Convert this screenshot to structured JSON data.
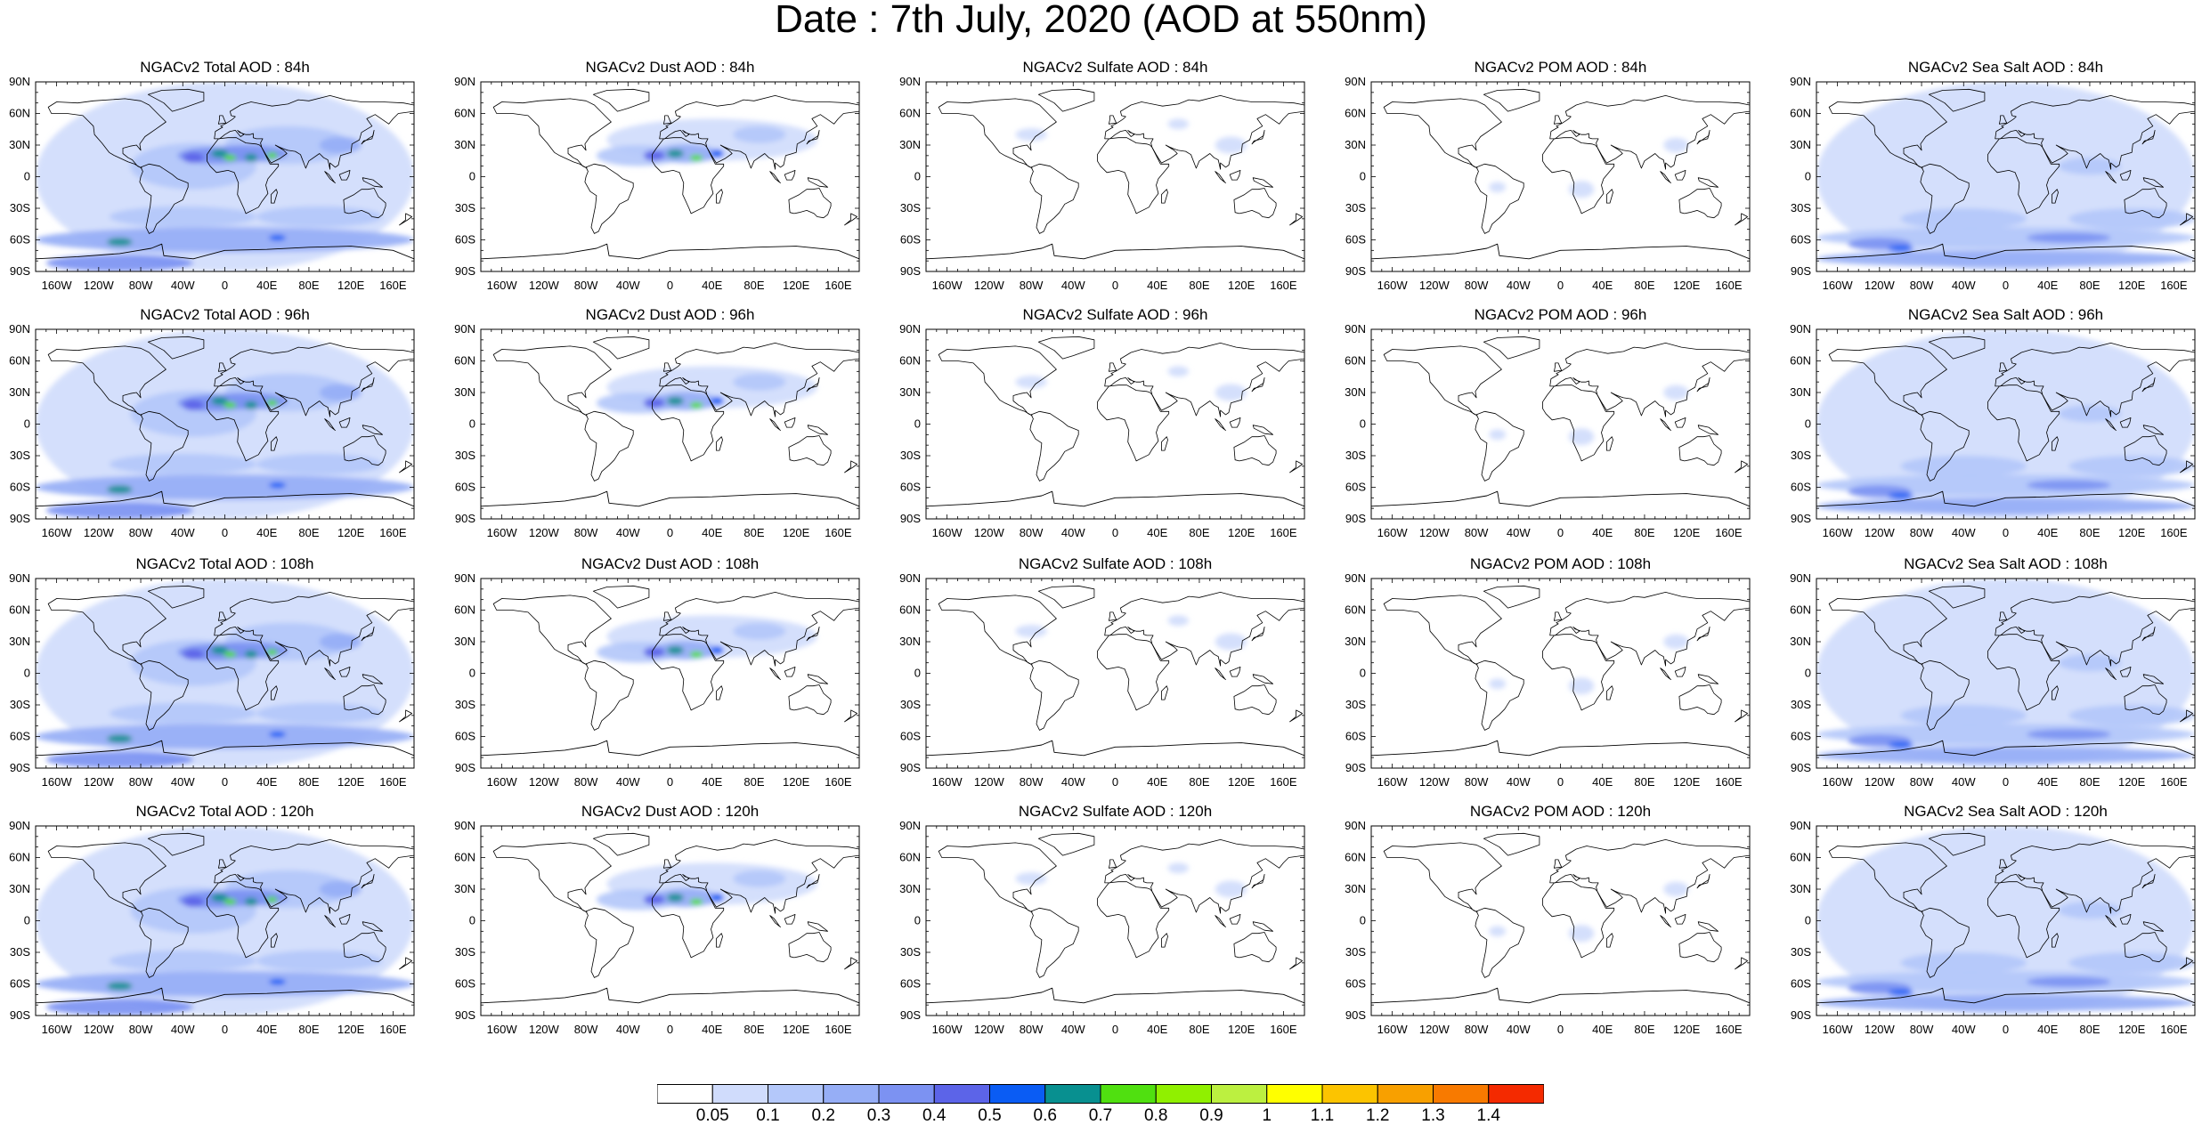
{
  "title": "Date : 7th July, 2020 (AOD at 550nm)",
  "axes": {
    "lon_ticks": [
      "160W",
      "120W",
      "80W",
      "40W",
      "0",
      "40E",
      "80E",
      "120E",
      "160E"
    ],
    "lat_ticks": [
      "90N",
      "60N",
      "30N",
      "0",
      "30S",
      "60S",
      "90S"
    ]
  },
  "panels": [
    {
      "title": "NGACv2 Total AOD : 84h",
      "species": "total"
    },
    {
      "title": "NGACv2 Dust AOD : 84h",
      "species": "dust"
    },
    {
      "title": "NGACv2 Sulfate AOD : 84h",
      "species": "sulfate"
    },
    {
      "title": "NGACv2 POM AOD : 84h",
      "species": "pom"
    },
    {
      "title": "NGACv2 Sea Salt AOD : 84h",
      "species": "seasalt"
    },
    {
      "title": "NGACv2 Total AOD : 96h",
      "species": "total"
    },
    {
      "title": "NGACv2 Dust AOD : 96h",
      "species": "dust"
    },
    {
      "title": "NGACv2 Sulfate AOD : 96h",
      "species": "sulfate"
    },
    {
      "title": "NGACv2 POM AOD : 96h",
      "species": "pom"
    },
    {
      "title": "NGACv2 Sea Salt AOD : 96h",
      "species": "seasalt"
    },
    {
      "title": "NGACv2 Total AOD : 108h",
      "species": "total"
    },
    {
      "title": "NGACv2 Dust AOD : 108h",
      "species": "dust"
    },
    {
      "title": "NGACv2 Sulfate AOD : 108h",
      "species": "sulfate"
    },
    {
      "title": "NGACv2 POM AOD : 108h",
      "species": "pom"
    },
    {
      "title": "NGACv2 Sea Salt AOD : 108h",
      "species": "seasalt"
    },
    {
      "title": "NGACv2 Total AOD : 120h",
      "species": "total"
    },
    {
      "title": "NGACv2 Dust AOD : 120h",
      "species": "dust"
    },
    {
      "title": "NGACv2 Sulfate AOD : 120h",
      "species": "sulfate"
    },
    {
      "title": "NGACv2 POM AOD : 120h",
      "species": "pom"
    },
    {
      "title": "NGACv2 Sea Salt  AOD : 120h",
      "species": "seasalt"
    }
  ],
  "colorbar": {
    "colors": [
      "#ffffff",
      "#d0dcfc",
      "#b4c8fa",
      "#96aef6",
      "#7c92f2",
      "#5c64e8",
      "#0a5cf4",
      "#089090",
      "#50e010",
      "#90f000",
      "#bcf040",
      "#ffff00",
      "#fcc400",
      "#f8a000",
      "#f87a00",
      "#f42a00"
    ],
    "labels": [
      "0.05",
      "0.1",
      "0.2",
      "0.3",
      "0.4",
      "0.5",
      "0.6",
      "0.7",
      "0.8",
      "0.9",
      "1",
      "1.1",
      "1.2",
      "1.3",
      "1.4"
    ]
  }
}
